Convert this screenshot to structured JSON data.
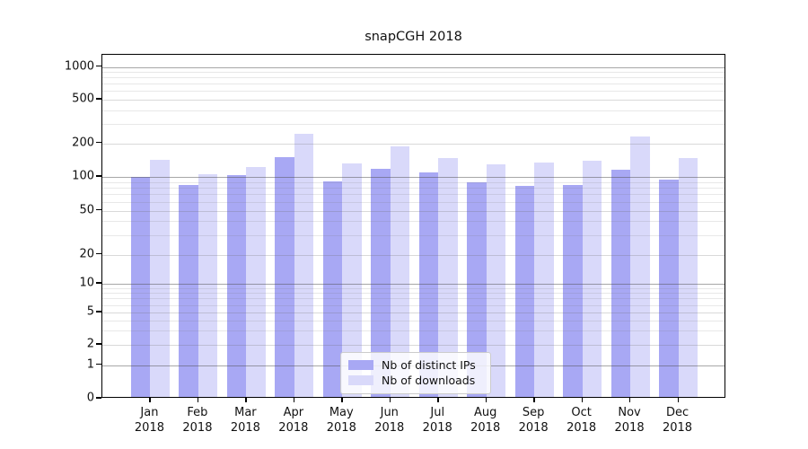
{
  "title": "snapCGH 2018",
  "chart_data": {
    "type": "bar",
    "title": "snapCGH 2018",
    "categories": [
      "Jan 2018",
      "Feb 2018",
      "Mar 2018",
      "Apr 2018",
      "May 2018",
      "Jun 2018",
      "Jul 2018",
      "Aug 2018",
      "Sep 2018",
      "Oct 2018",
      "Nov 2018",
      "Dec 2018"
    ],
    "series": [
      {
        "name": "Nb of distinct IPs",
        "color": "#a8a8f4",
        "values": [
          97,
          81,
          100,
          145,
          88,
          113,
          105,
          87,
          80,
          81,
          111,
          92
        ]
      },
      {
        "name": "Nb of downloads",
        "color": "#d9d9fa",
        "values": [
          137,
          102,
          119,
          235,
          128,
          180,
          141,
          124,
          130,
          134,
          222,
          143
        ]
      }
    ],
    "xlabel": "",
    "ylabel": "",
    "yscale": "log-like",
    "y_ticks": [
      0,
      1,
      2,
      5,
      10,
      20,
      50,
      100,
      200,
      500,
      1000
    ],
    "ylim": [
      0,
      1000
    ],
    "grid": "on",
    "legend_position": "bottom-center"
  },
  "legend": {
    "items": [
      {
        "label": "Nb of distinct IPs"
      },
      {
        "label": "Nb of downloads"
      }
    ]
  }
}
